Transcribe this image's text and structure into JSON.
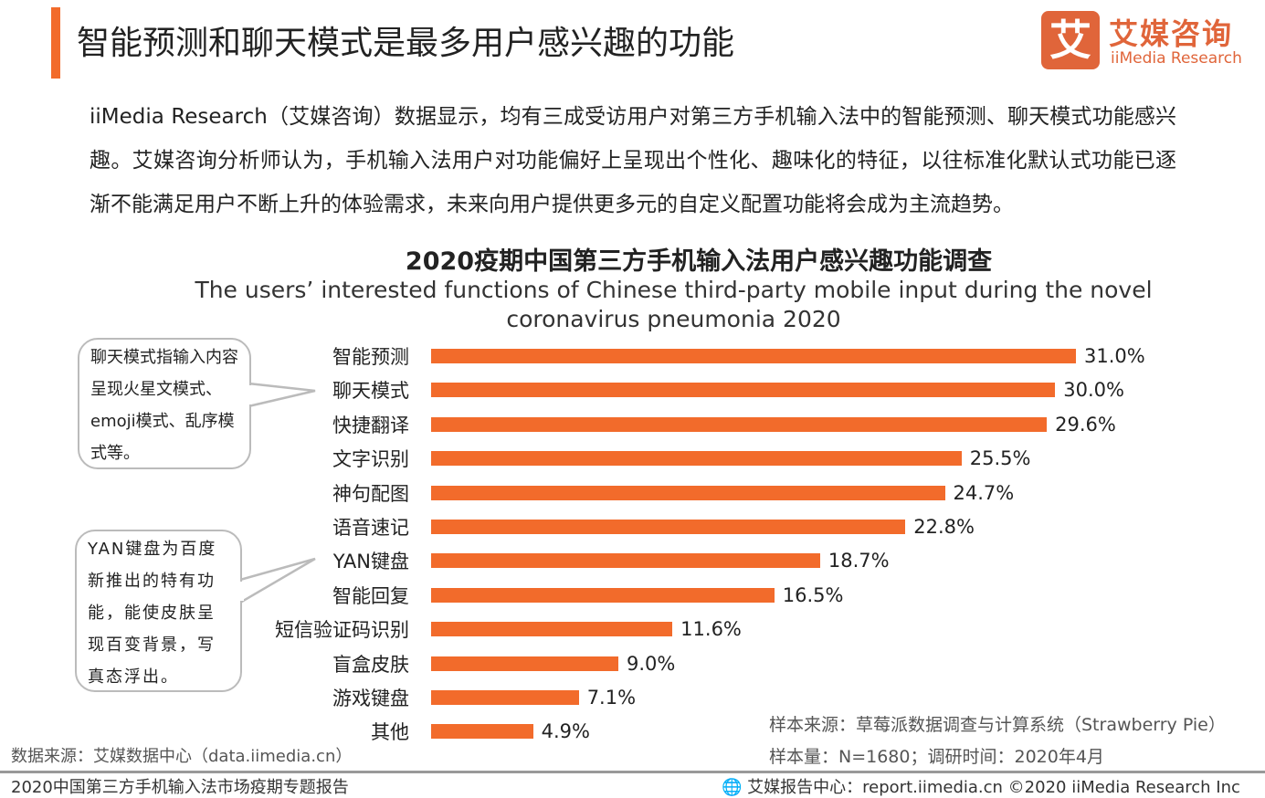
{
  "header": {
    "title": "智能预测和聊天模式是最多用户感兴趣的功能"
  },
  "logo": {
    "mark": "艾",
    "name_cn": "艾媒咨询",
    "name_en": "iiMedia Research"
  },
  "intro": "iiMedia Research（艾媒咨询）数据显示，均有三成受访用户对第三方手机输入法中的智能预测、聊天模式功能感兴趣。艾媒咨询分析师认为，手机输入法用户对功能偏好上呈现出个性化、趣味化的特征，以往标准化默认式功能已逐渐不能满足用户不断上升的体验需求，未来向用户提供更多元的自定义配置功能将会成为主流趋势。",
  "callouts": [
    "聊天模式指输入内容呈现火星文模式、emoji模式、乱序模式等。",
    "YAN键盘为百度新推出的特有功能，能使皮肤呈现百变背景，写真态浮出。"
  ],
  "chart_data": {
    "type": "bar",
    "orientation": "horizontal",
    "title": "2020疫期中国第三方手机输入法用户感兴趣功能调查",
    "subtitle": "The users’  interested functions of Chinese third-party mobile input during  the novel coronavirus pneumonia 2020",
    "categories": [
      "智能预测",
      "聊天模式",
      "快捷翻译",
      "文字识别",
      "神句配图",
      "语音速记",
      "YAN键盘",
      "智能回复",
      "短信验证码识别",
      "盲盒皮肤",
      "游戏键盘",
      "其他"
    ],
    "values": [
      31.0,
      30.0,
      29.6,
      25.5,
      24.7,
      22.8,
      18.7,
      16.5,
      11.6,
      9.0,
      7.1,
      4.9
    ],
    "labels": [
      "31.0%",
      "30.0%",
      "29.6%",
      "25.5%",
      "24.7%",
      "22.8%",
      "18.7%",
      "16.5%",
      "11.6%",
      "9.0%",
      "7.1%",
      "4.9%"
    ],
    "unit": "%",
    "xlim": [
      0,
      31
    ],
    "grid": false,
    "bar_color": "#f26b2b"
  },
  "sources": {
    "left": "数据来源：艾媒数据中心（data.iimedia.cn）",
    "sample_source": "样本来源：草莓派数据调查与计算系统（Strawberry  Pie）",
    "sample_size": "样本量：N=1680；调研时间：2020年4月"
  },
  "footer": {
    "left": "2020中国第三方手机输入法市场疫期专题报告",
    "right": "艾媒报告中心：report.iimedia.cn   ©2020  iiMedia Research  Inc"
  }
}
